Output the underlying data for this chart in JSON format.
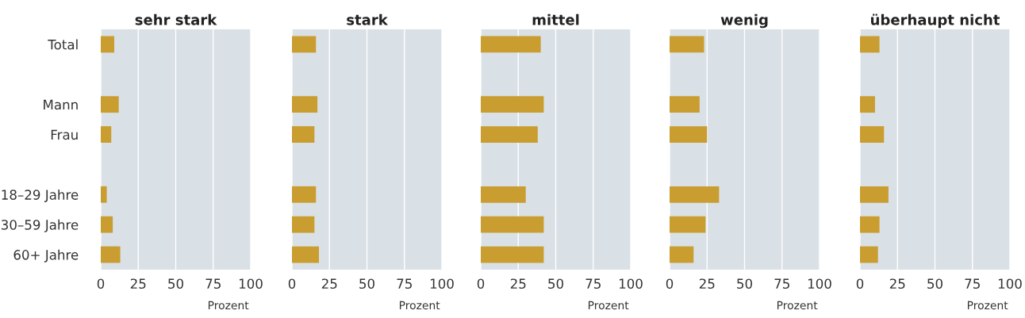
{
  "chart_data": [
    {
      "type": "bar",
      "orientation": "horizontal",
      "title": "sehr stark",
      "xlabel": "Prozent",
      "categories": [
        "Total",
        null,
        "Mann",
        "Frau",
        null,
        "18–29 Jahre",
        "30–59 Jahre",
        "60+ Jahre"
      ],
      "values": [
        9,
        null,
        12,
        7,
        null,
        4,
        8,
        13
      ],
      "color": "#c99d2f",
      "xlim": [
        0,
        100
      ],
      "xticks": [
        0,
        25,
        50,
        75,
        100
      ],
      "grid": "x"
    },
    {
      "type": "bar",
      "orientation": "horizontal",
      "title": "stark",
      "xlabel": "Prozent",
      "categories": [
        null,
        null,
        null,
        null,
        null,
        null,
        null,
        null
      ],
      "values": [
        16,
        null,
        17,
        15,
        null,
        16,
        15,
        18
      ],
      "color": "#c99d2f",
      "xlim": [
        0,
        100
      ],
      "xticks": [
        0,
        25,
        50,
        75,
        100
      ],
      "grid": "x"
    },
    {
      "type": "bar",
      "orientation": "horizontal",
      "title": "mittel",
      "xlabel": "Prozent",
      "categories": [
        null,
        null,
        null,
        null,
        null,
        null,
        null,
        null
      ],
      "values": [
        40,
        null,
        42,
        38,
        null,
        30,
        42,
        42
      ],
      "color": "#c99d2f",
      "xlim": [
        0,
        100
      ],
      "xticks": [
        0,
        25,
        50,
        75,
        100
      ],
      "grid": "x"
    },
    {
      "type": "bar",
      "orientation": "horizontal",
      "title": "wenig",
      "xlabel": "Prozent",
      "categories": [
        null,
        null,
        null,
        null,
        null,
        null,
        null,
        null
      ],
      "values": [
        23,
        null,
        20,
        25,
        null,
        33,
        24,
        16
      ],
      "color": "#c99d2f",
      "xlim": [
        0,
        100
      ],
      "xticks": [
        0,
        25,
        50,
        75,
        100
      ],
      "grid": "x"
    },
    {
      "type": "bar",
      "orientation": "horizontal",
      "title": "überhaupt nicht",
      "xlabel": "Prozent",
      "categories": [
        null,
        null,
        null,
        null,
        null,
        null,
        null,
        null
      ],
      "values": [
        13,
        null,
        10,
        16,
        null,
        19,
        13,
        12
      ],
      "color": "#c99d2f",
      "xlim": [
        0,
        100
      ],
      "xticks": [
        0,
        25,
        50,
        75,
        100
      ],
      "grid": "x"
    }
  ]
}
